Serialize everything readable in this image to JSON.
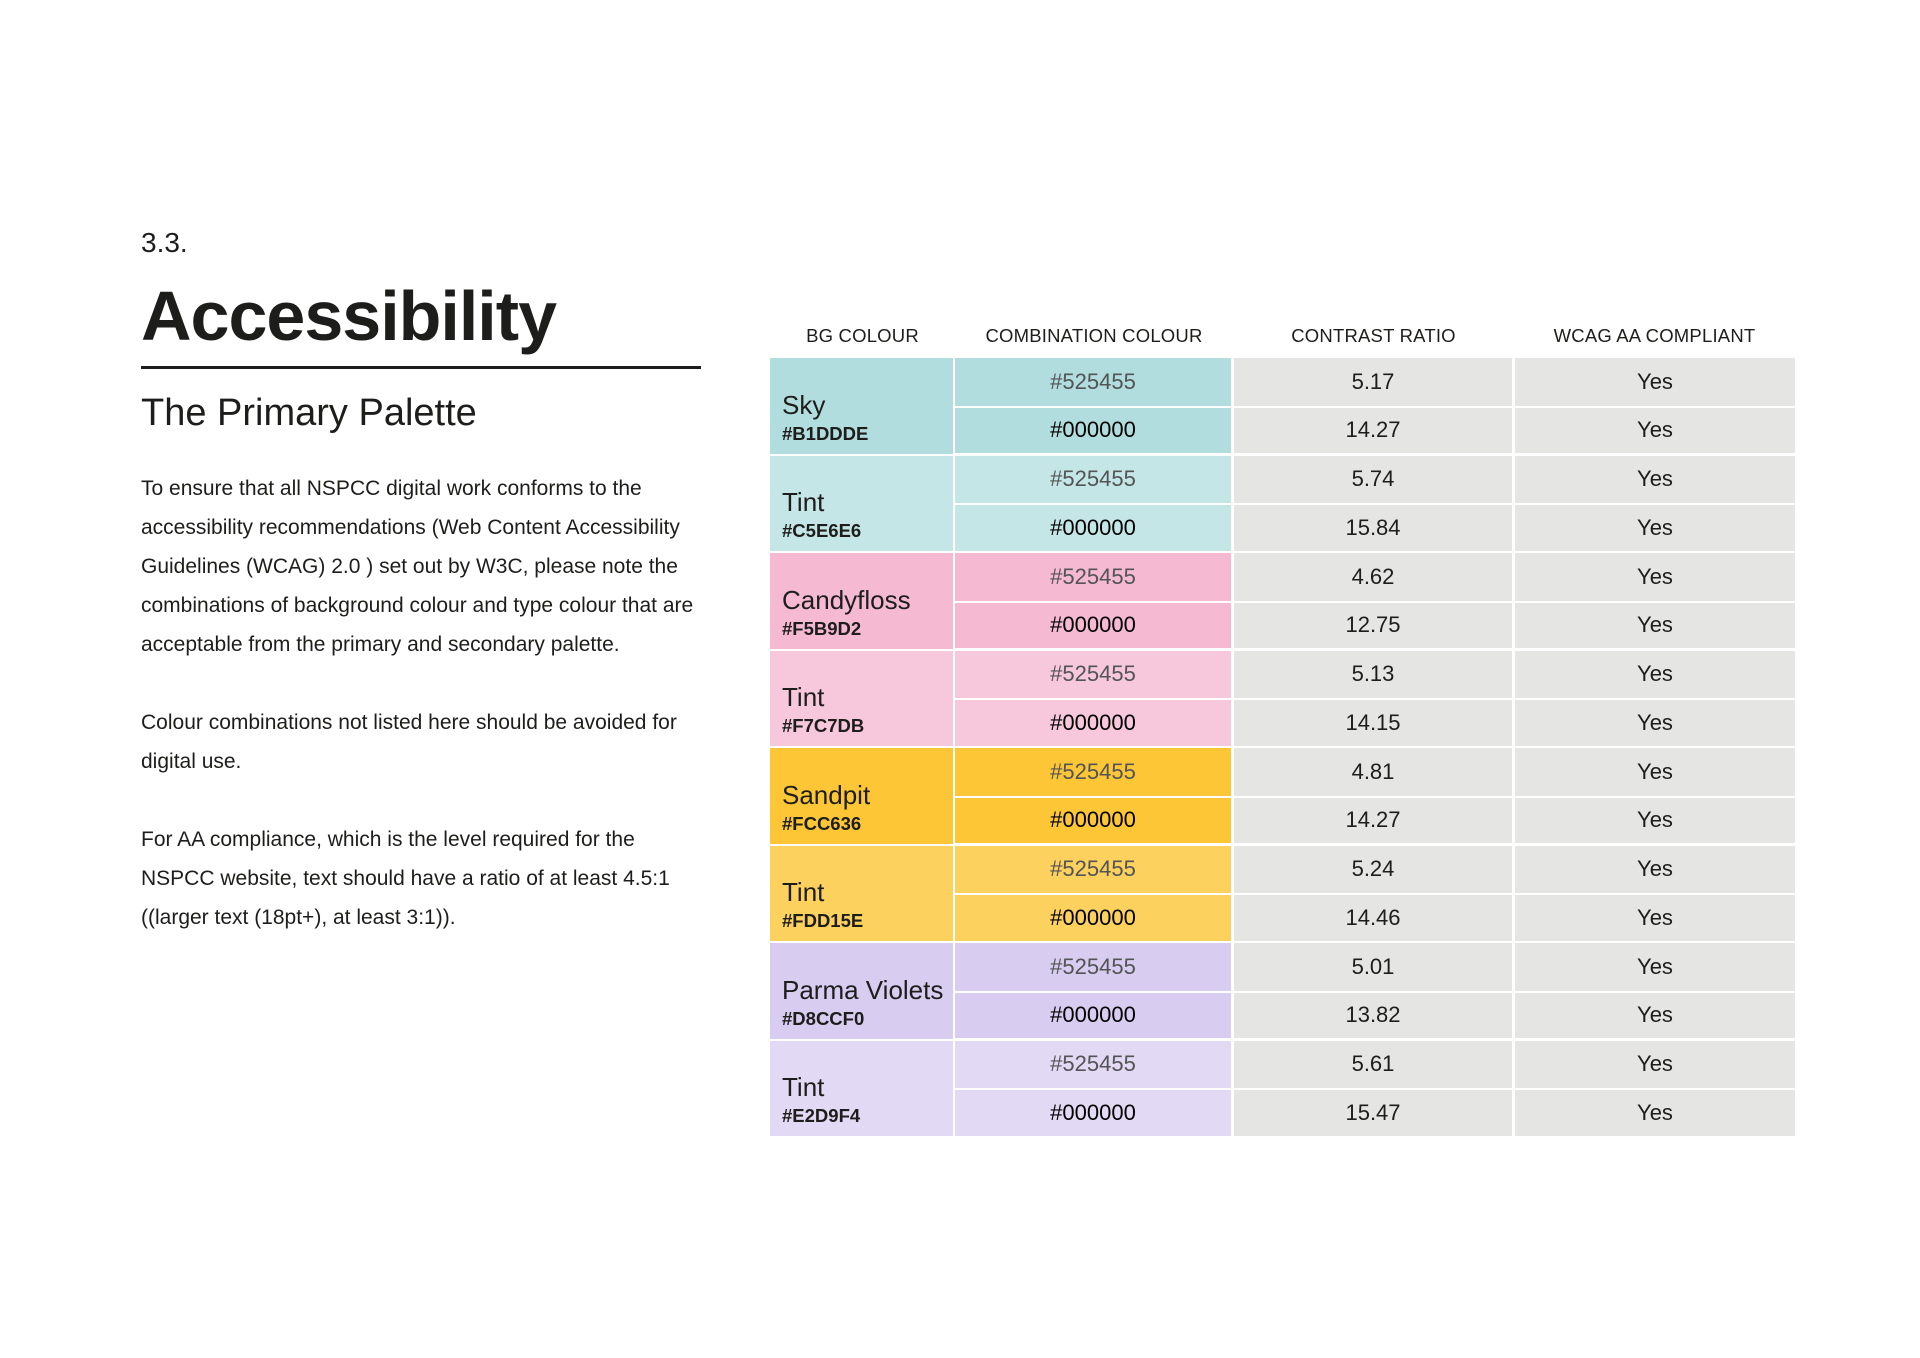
{
  "section": {
    "number": "3.3.",
    "title": "Accessibility",
    "subtitle": "The Primary Palette",
    "paragraphs": [
      "To ensure that all NSPCC digital work conforms to the accessibility recommendations (Web Content Accessibility Guidelines (WCAG) 2.0 ) set out by W3C, please note the combinations of background colour and type colour that are acceptable from the primary and secondary palette.",
      "Colour combinations not listed here should be avoided for digital use.",
      "For AA compliance, which is the level required for the NSPCC website, text should have a ratio of at least 4.5:1 ((larger text (18pt+), at least 3:1))."
    ]
  },
  "table": {
    "headers": [
      "BG COLOUR",
      "COMBINATION COLOUR",
      "CONTRAST RATIO",
      "WCAG AA COMPLIANT"
    ],
    "colors": {
      "text_grey": "#525455",
      "text_black": "#000000",
      "cell_grey": "#E5E5E3"
    },
    "groups": [
      {
        "name": "Sky",
        "hex": "#B1DDDE",
        "rows": [
          {
            "combo": "#525455",
            "ratio": "5.17",
            "compliant": "Yes"
          },
          {
            "combo": "#000000",
            "ratio": "14.27",
            "compliant": "Yes"
          }
        ]
      },
      {
        "name": "Tint",
        "hex": "#C5E6E6",
        "rows": [
          {
            "combo": "#525455",
            "ratio": "5.74",
            "compliant": "Yes"
          },
          {
            "combo": "#000000",
            "ratio": "15.84",
            "compliant": "Yes"
          }
        ]
      },
      {
        "name": "Candyfloss",
        "hex": "#F5B9D2",
        "rows": [
          {
            "combo": "#525455",
            "ratio": "4.62",
            "compliant": "Yes"
          },
          {
            "combo": "#000000",
            "ratio": "12.75",
            "compliant": "Yes"
          }
        ]
      },
      {
        "name": "Tint",
        "hex": "#F7C7DB",
        "rows": [
          {
            "combo": "#525455",
            "ratio": "5.13",
            "compliant": "Yes"
          },
          {
            "combo": "#000000",
            "ratio": "14.15",
            "compliant": "Yes"
          }
        ]
      },
      {
        "name": "Sandpit",
        "hex": "#FCC636",
        "rows": [
          {
            "combo": "#525455",
            "ratio": "4.81",
            "compliant": "Yes"
          },
          {
            "combo": "#000000",
            "ratio": "14.27",
            "compliant": "Yes"
          }
        ]
      },
      {
        "name": "Tint",
        "hex": "#FDD15E",
        "rows": [
          {
            "combo": "#525455",
            "ratio": "5.24",
            "compliant": "Yes"
          },
          {
            "combo": "#000000",
            "ratio": "14.46",
            "compliant": "Yes"
          }
        ]
      },
      {
        "name": "Parma Violets",
        "hex": "#D8CCF0",
        "rows": [
          {
            "combo": "#525455",
            "ratio": "5.01",
            "compliant": "Yes"
          },
          {
            "combo": "#000000",
            "ratio": "13.82",
            "compliant": "Yes"
          }
        ]
      },
      {
        "name": "Tint",
        "hex": "#E2D9F4",
        "rows": [
          {
            "combo": "#525455",
            "ratio": "5.61",
            "compliant": "Yes"
          },
          {
            "combo": "#000000",
            "ratio": "15.47",
            "compliant": "Yes"
          }
        ]
      }
    ]
  }
}
